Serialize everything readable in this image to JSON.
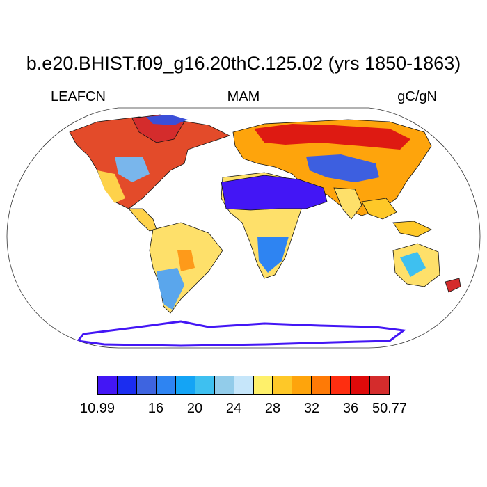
{
  "title": "b.e20.BHIST.f09_g16.20thC.125.02 (yrs 1850-1863)",
  "variable": "LEAFCN",
  "season": "MAM",
  "units": "gC/gN",
  "colorbar": {
    "colors": [
      "#4316f5",
      "#1b2df0",
      "#3e64e0",
      "#2e84f2",
      "#14a4f5",
      "#3ec0f0",
      "#92ccea",
      "#c6e6fa",
      "#fef06a",
      "#fec828",
      "#fea40c",
      "#fe7a06",
      "#fe2e10",
      "#de0a0a",
      "#d42c2c"
    ],
    "ticks": [
      {
        "label": "10.99",
        "index": 0
      },
      {
        "label": "16",
        "index": 3
      },
      {
        "label": "20",
        "index": 5
      },
      {
        "label": "24",
        "index": 7
      },
      {
        "label": "28",
        "index": 9
      },
      {
        "label": "32",
        "index": 11
      },
      {
        "label": "36",
        "index": 13
      },
      {
        "label": "50.77",
        "index": 15
      }
    ]
  },
  "legend_colors": {
    "ocean": "#ffffff",
    "coast": "#000000"
  }
}
